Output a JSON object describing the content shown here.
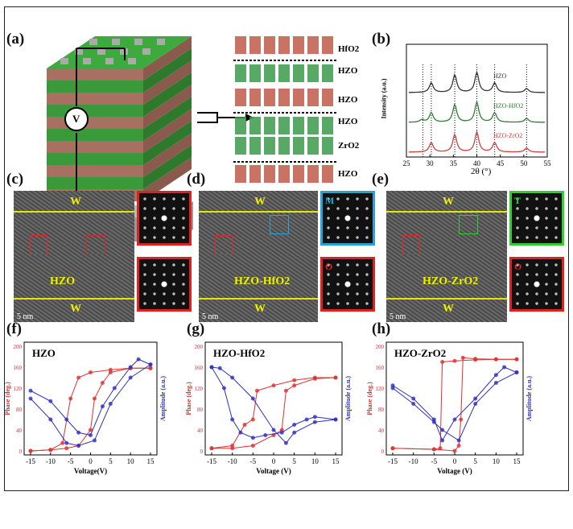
{
  "panels": {
    "a": "(a)",
    "b": "(b)",
    "c": "(c)",
    "d": "(d)",
    "e": "(e)",
    "f": "(f)",
    "g": "(g)",
    "h": "(h)"
  },
  "panel_a": {
    "meter": "V",
    "layers": [
      "HfO2",
      "HZO",
      "HZO",
      "HZO",
      "ZrO2",
      "HZO"
    ]
  },
  "panel_b": {
    "xlabel": "2θ (°)",
    "ylabel": "Intensity (a.u.)",
    "xticks": [
      "25",
      "30",
      "35",
      "40",
      "45",
      "50",
      "55"
    ],
    "series": [
      "HZO",
      "HZO-HfO2",
      "HZO-ZrO2"
    ],
    "colors": [
      "#333333",
      "#2e7d32",
      "#d04040"
    ]
  },
  "tem": [
    {
      "top": "W",
      "bottom": "W",
      "film": "HZO",
      "scale": "5 nm",
      "insets": [
        "",
        ""
      ],
      "inset_colors": [
        "#d22",
        "#d22"
      ]
    },
    {
      "top": "W",
      "bottom": "W",
      "film": "HZO-HfO2",
      "scale": "5 nm",
      "insets": [
        "M",
        "O"
      ],
      "inset_colors": [
        "#29a3d6",
        "#d22"
      ]
    },
    {
      "top": "W",
      "bottom": "W",
      "film": "HZO-ZrO2",
      "scale": "5 nm",
      "insets": [
        "T",
        "O"
      ],
      "inset_colors": [
        "#3c3",
        "#d22"
      ]
    }
  ],
  "chart_data": [
    {
      "type": "line",
      "title": "HZO",
      "xlabel": "Voltage(V)",
      "ylabel": "Phase (deg.)",
      "y2label": "Amplitude (a.u.)",
      "xlim": [
        -15,
        15
      ],
      "ylim": [
        0,
        200
      ],
      "xticks": [
        -15,
        -10,
        -5,
        0,
        5,
        10,
        15
      ],
      "yticks": [
        0,
        40,
        80,
        120,
        160,
        200
      ],
      "series": [
        {
          "color": "#e03030",
          "x": [
            -15,
            -10,
            -7,
            -5,
            -3,
            0,
            5,
            10,
            15
          ],
          "y": [
            0,
            2,
            15,
            100,
            140,
            150,
            155,
            158,
            158
          ]
        },
        {
          "color": "#e03030",
          "x": [
            15,
            10,
            5,
            3,
            1,
            0,
            -3,
            -6,
            -10,
            -15
          ],
          "y": [
            158,
            158,
            150,
            130,
            100,
            40,
            10,
            5,
            2,
            0
          ]
        },
        {
          "color": "#3030c0",
          "x": [
            -15,
            -10,
            -6,
            -3,
            0,
            3,
            6,
            10,
            12,
            15
          ],
          "y": [
            115,
            95,
            60,
            35,
            30,
            85,
            120,
            160,
            175,
            165
          ]
        },
        {
          "color": "#3030c0",
          "x": [
            15,
            10,
            5,
            1,
            -3,
            -6,
            -10,
            -15
          ],
          "y": [
            165,
            140,
            90,
            20,
            10,
            15,
            60,
            100
          ]
        }
      ]
    },
    {
      "type": "line",
      "title": "HZO-HfO2",
      "xlabel": "Voltage (V)",
      "ylabel": "Phase (deg.)",
      "y2label": "Amplitude (a.u.)",
      "xlim": [
        -15,
        15
      ],
      "ylim": [
        0,
        200
      ],
      "xticks": [
        -15,
        -10,
        -5,
        0,
        5,
        10,
        15
      ],
      "yticks": [
        0,
        40,
        80,
        120,
        160,
        200
      ],
      "series": [
        {
          "color": "#e03030",
          "x": [
            -15,
            -10,
            -7,
            -5,
            -4,
            0,
            5,
            10,
            15
          ],
          "y": [
            5,
            10,
            50,
            60,
            115,
            125,
            135,
            140,
            140
          ]
        },
        {
          "color": "#e03030",
          "x": [
            15,
            10,
            5,
            3,
            2,
            0,
            -5,
            -10,
            -15
          ],
          "y": [
            140,
            138,
            125,
            115,
            40,
            30,
            10,
            5,
            5
          ]
        },
        {
          "color": "#3030c0",
          "x": [
            -15,
            -12,
            -10,
            -8,
            -5,
            -2,
            2,
            5,
            8,
            10,
            15
          ],
          "y": [
            160,
            120,
            60,
            35,
            25,
            30,
            35,
            50,
            60,
            65,
            60
          ]
        },
        {
          "color": "#3030c0",
          "x": [
            15,
            10,
            5,
            3,
            0,
            -5,
            -10,
            -13,
            -15
          ],
          "y": [
            60,
            55,
            35,
            15,
            40,
            100,
            140,
            158,
            160
          ]
        }
      ]
    },
    {
      "type": "line",
      "title": "HZO-ZrO2",
      "xlabel": "Voltage (V)",
      "ylabel": "Phase (deg.)",
      "y2label": "Amplitude (a.u.)",
      "xlim": [
        -15,
        15
      ],
      "ylim": [
        0,
        200
      ],
      "xticks": [
        -15,
        -10,
        -5,
        0,
        5,
        10,
        15
      ],
      "yticks": [
        0,
        40,
        80,
        120,
        160,
        200
      ],
      "series": [
        {
          "color": "#e03030",
          "x": [
            -15,
            -5,
            -3.5,
            -3,
            0,
            5,
            10,
            15
          ],
          "y": [
            5,
            3,
            5,
            170,
            172,
            174,
            175,
            175
          ]
        },
        {
          "color": "#e03030",
          "x": [
            15,
            10,
            5,
            2,
            1.5,
            1,
            0,
            -5,
            -15
          ],
          "y": [
            175,
            175,
            176,
            178,
            60,
            10,
            0,
            3,
            5
          ]
        },
        {
          "color": "#3030c0",
          "x": [
            -15,
            -10,
            -5,
            -3,
            0,
            5,
            10,
            12,
            15
          ],
          "y": [
            125,
            100,
            60,
            20,
            60,
            100,
            145,
            160,
            150
          ]
        },
        {
          "color": "#3030c0",
          "x": [
            15,
            10,
            5,
            1,
            -3,
            -5,
            -10,
            -15
          ],
          "y": [
            150,
            130,
            90,
            20,
            40,
            55,
            90,
            120
          ]
        }
      ]
    }
  ]
}
